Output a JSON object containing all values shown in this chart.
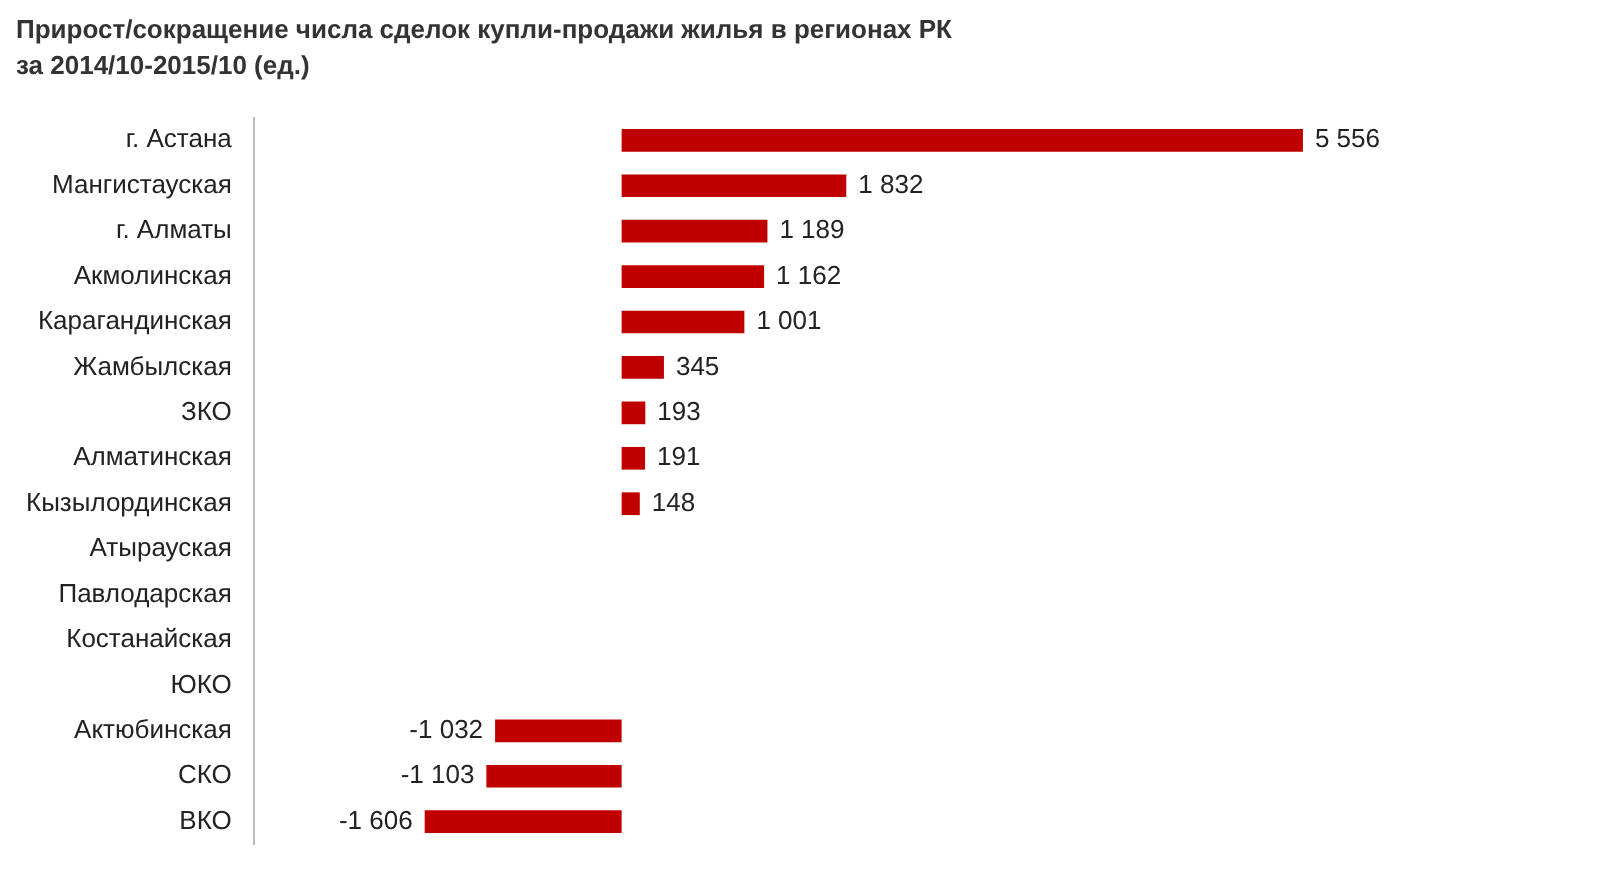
{
  "chart_data": {
    "type": "bar",
    "orientation": "horizontal",
    "title": "Прирост/сокращение числа сделок купли-продажи жилья в регионах РК",
    "subtitle": "за 2014/10-2015/10 (ед.)",
    "categories": [
      "г. Астана",
      "Мангистауская",
      "г. Алматы",
      "Акмолинская",
      "Карагандинская",
      "Жамбылская",
      "ЗКО",
      "Алматинская",
      "Кызылординская",
      "Атырауская",
      "Павлодарская",
      "Костанайская",
      "ЮКО",
      "Актюбинская",
      "СКО",
      "ВКО"
    ],
    "values": [
      5556,
      1832,
      1189,
      1162,
      1001,
      345,
      193,
      191,
      148,
      null,
      null,
      null,
      null,
      -1032,
      -1103,
      -1606
    ],
    "value_labels": [
      "5 556",
      "1 832",
      "1 189",
      "1 162",
      "1 001",
      "345",
      "193",
      "191",
      "148",
      null,
      null,
      null,
      null,
      "-1 032",
      "-1 103",
      "-1 606"
    ],
    "color": "#c00000",
    "tick_labels": "y",
    "legend": false
  }
}
